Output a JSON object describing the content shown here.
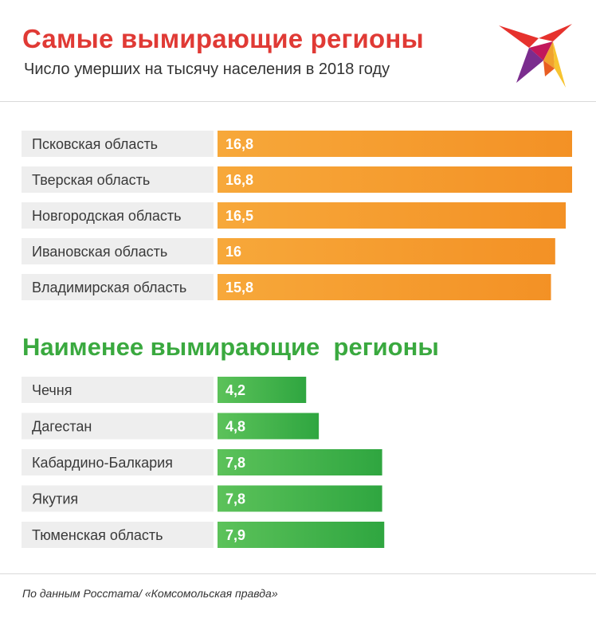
{
  "header": {
    "title": "Самые вымирающие регионы",
    "subtitle": "Число умерших на тысячу населения в 2018 году"
  },
  "logo_icon": "swallow-logo-icon",
  "colors": {
    "title_red": "#e03a35",
    "title_green": "#3aa93f",
    "bar_orange": "#f59a2c",
    "bar_green": "#3db34a",
    "label_bg": "#eeeeee"
  },
  "section2": {
    "title": "Наименее вымирающие  регионы"
  },
  "chart_data": [
    {
      "type": "bar",
      "orientation": "horizontal",
      "title": "Самые вымирающие регионы",
      "subtitle": "Число умерших на тысячу населения в 2018 году",
      "categories": [
        "Псковская область",
        "Тверская область",
        "Новгородская область",
        "Ивановская область",
        "Владимирская область"
      ],
      "values": [
        16.8,
        16.8,
        16.5,
        16,
        15.8
      ],
      "value_labels": [
        "16,8",
        "16,8",
        "16,5",
        "16",
        "15,8"
      ],
      "grid": false,
      "legend": "none"
    },
    {
      "type": "bar",
      "orientation": "horizontal",
      "title": "Наименее вымирающие  регионы",
      "categories": [
        "Чечня",
        "Дагестан",
        "Кабардино-Балкария",
        "Якутия",
        "Тюменская область"
      ],
      "values": [
        4.2,
        4.8,
        7.8,
        7.8,
        7.9
      ],
      "value_labels": [
        "4,2",
        "4,8",
        "7,8",
        "7,8",
        "7,9"
      ],
      "grid": false,
      "legend": "none"
    }
  ],
  "footer": {
    "source": "По данным Росстата/ «Комсомольская правда»"
  }
}
